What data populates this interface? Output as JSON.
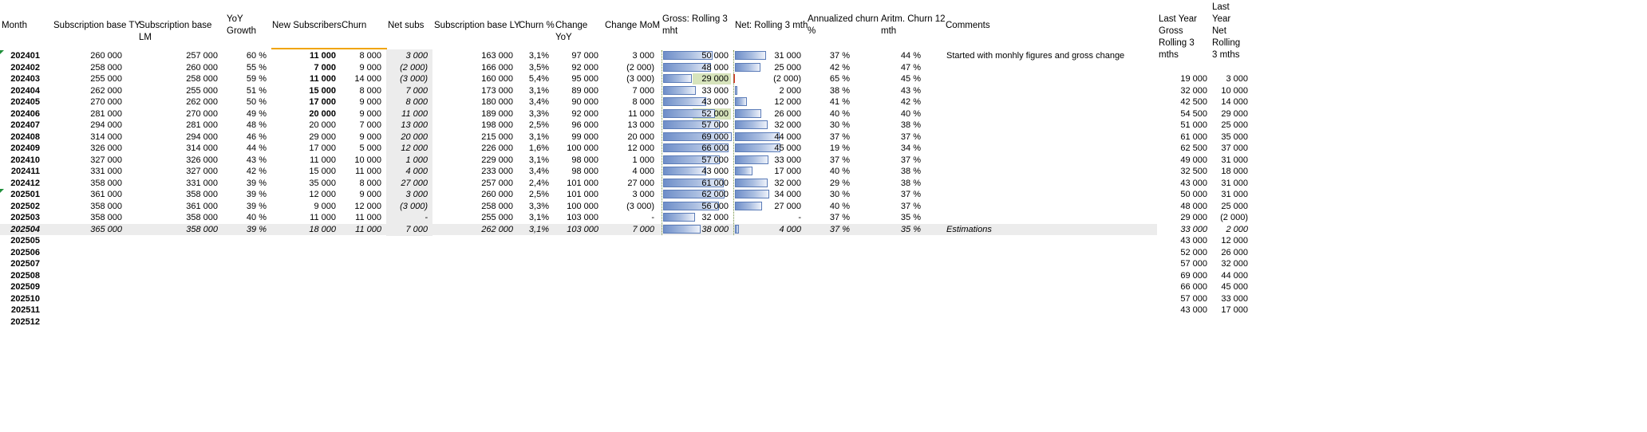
{
  "sheet": {
    "headers": {
      "month": "Month",
      "sub_ty": "Subscription base TY",
      "sub_lm": "Subscription base LM",
      "yoy": "YoY Growth",
      "new_subs": "New Subscribers",
      "churn": "Churn",
      "net_subs": "Net subs",
      "sub_ly": "Subscription base LY",
      "churn_pct": "Churn %",
      "change_yoy": "Change YoY",
      "change_mom": "Change MoM",
      "gross_roll": "Gross: Rolling 3 mht",
      "net_roll": "Net: Rolling 3 mth",
      "ann_churn": "Annualized churn %",
      "arith_churn": "Aritm. Churn 12 mth",
      "comments": "Comments",
      "ly_gross": "Last Year Gross Rolling 3 mths",
      "ly_net": "Last Year Net Rolling 3 mths"
    },
    "rows": [
      {
        "month": "202401",
        "sub_ty": "260 000",
        "sub_lm": "257 000",
        "yoy": "60 %",
        "new_subs": "11 000",
        "churn": "8 000",
        "net_subs": "3 000",
        "sub_ly": "163 000",
        "churn_pct": "3,1%",
        "change_yoy": "97 000",
        "change_mom": "3 000",
        "gross_roll": "50 000",
        "gross_val": 50000,
        "net_roll": "31 000",
        "net_val": 31000,
        "ann_churn": "37 %",
        "arith_churn": "44 %",
        "comment": "Started with monhly figures and gross change",
        "ly_gross": "",
        "ly_net": ""
      },
      {
        "month": "202402",
        "sub_ty": "258 000",
        "sub_lm": "260 000",
        "yoy": "55 %",
        "new_subs": "7 000",
        "churn": "9 000",
        "net_subs": "(2 000)",
        "sub_ly": "166 000",
        "churn_pct": "3,5%",
        "change_yoy": "92 000",
        "change_mom": "(2 000)",
        "gross_roll": "48 000",
        "gross_val": 48000,
        "net_roll": "25 000",
        "net_val": 25000,
        "ann_churn": "42 %",
        "arith_churn": "47 %",
        "comment": "",
        "ly_gross": "",
        "ly_net": ""
      },
      {
        "month": "202403",
        "sub_ty": "255 000",
        "sub_lm": "258 000",
        "yoy": "59 %",
        "new_subs": "11 000",
        "churn": "14 000",
        "net_subs": "(3 000)",
        "sub_ly": "160 000",
        "churn_pct": "5,4%",
        "change_yoy": "95 000",
        "change_mom": "(3 000)",
        "gross_roll": "29 000",
        "gross_val": 29000,
        "net_roll": "(2 000)",
        "net_val": -2000,
        "ann_churn": "65 %",
        "arith_churn": "45 %",
        "comment": "",
        "ly_gross": "19 000",
        "ly_net": "3 000"
      },
      {
        "month": "202404",
        "sub_ty": "262 000",
        "sub_lm": "255 000",
        "yoy": "51 %",
        "new_subs": "15 000",
        "churn": "8 000",
        "net_subs": "7 000",
        "sub_ly": "173 000",
        "churn_pct": "3,1%",
        "change_yoy": "89 000",
        "change_mom": "7 000",
        "gross_roll": "33 000",
        "gross_val": 33000,
        "net_roll": "2 000",
        "net_val": 2000,
        "ann_churn": "38 %",
        "arith_churn": "43 %",
        "comment": "",
        "ly_gross": "32 000",
        "ly_net": "10 000"
      },
      {
        "month": "202405",
        "sub_ty": "270 000",
        "sub_lm": "262 000",
        "yoy": "50 %",
        "new_subs": "17 000",
        "churn": "9 000",
        "net_subs": "8 000",
        "sub_ly": "180 000",
        "churn_pct": "3,4%",
        "change_yoy": "90 000",
        "change_mom": "8 000",
        "gross_roll": "43 000",
        "gross_val": 43000,
        "net_roll": "12 000",
        "net_val": 12000,
        "ann_churn": "41 %",
        "arith_churn": "42 %",
        "comment": "",
        "ly_gross": "42 500",
        "ly_net": "14 000"
      },
      {
        "month": "202406",
        "sub_ty": "281 000",
        "sub_lm": "270 000",
        "yoy": "49 %",
        "new_subs": "20 000",
        "churn": "9 000",
        "net_subs": "11 000",
        "sub_ly": "189 000",
        "churn_pct": "3,3%",
        "change_yoy": "92 000",
        "change_mom": "11 000",
        "gross_roll": "52 000",
        "gross_val": 52000,
        "net_roll": "26 000",
        "net_val": 26000,
        "ann_churn": "40 %",
        "arith_churn": "40 %",
        "comment": "",
        "ly_gross": "54 500",
        "ly_net": "29 000"
      },
      {
        "month": "202407",
        "sub_ty": "294 000",
        "sub_lm": "281 000",
        "yoy": "48 %",
        "new_subs": "20 000",
        "churn": "7 000",
        "net_subs": "13 000",
        "sub_ly": "198 000",
        "churn_pct": "2,5%",
        "change_yoy": "96 000",
        "change_mom": "13 000",
        "gross_roll": "57 000",
        "gross_val": 57000,
        "net_roll": "32 000",
        "net_val": 32000,
        "ann_churn": "30 %",
        "arith_churn": "38 %",
        "comment": "",
        "ly_gross": "51 000",
        "ly_net": "25 000"
      },
      {
        "month": "202408",
        "sub_ty": "314 000",
        "sub_lm": "294 000",
        "yoy": "46 %",
        "new_subs": "29 000",
        "churn": "9 000",
        "net_subs": "20 000",
        "sub_ly": "215 000",
        "churn_pct": "3,1%",
        "change_yoy": "99 000",
        "change_mom": "20 000",
        "gross_roll": "69 000",
        "gross_val": 69000,
        "net_roll": "44 000",
        "net_val": 44000,
        "ann_churn": "37 %",
        "arith_churn": "37 %",
        "comment": "",
        "ly_gross": "61 000",
        "ly_net": "35 000"
      },
      {
        "month": "202409",
        "sub_ty": "326 000",
        "sub_lm": "314 000",
        "yoy": "44 %",
        "new_subs": "17 000",
        "churn": "5 000",
        "net_subs": "12 000",
        "sub_ly": "226 000",
        "churn_pct": "1,6%",
        "change_yoy": "100 000",
        "change_mom": "12 000",
        "gross_roll": "66 000",
        "gross_val": 66000,
        "net_roll": "45 000",
        "net_val": 45000,
        "ann_churn": "19 %",
        "arith_churn": "34 %",
        "comment": "",
        "ly_gross": "62 500",
        "ly_net": "37 000"
      },
      {
        "month": "202410",
        "sub_ty": "327 000",
        "sub_lm": "326 000",
        "yoy": "43 %",
        "new_subs": "11 000",
        "churn": "10 000",
        "net_subs": "1 000",
        "sub_ly": "229 000",
        "churn_pct": "3,1%",
        "change_yoy": "98 000",
        "change_mom": "1 000",
        "gross_roll": "57 000",
        "gross_val": 57000,
        "net_roll": "33 000",
        "net_val": 33000,
        "ann_churn": "37 %",
        "arith_churn": "37 %",
        "comment": "",
        "ly_gross": "49 000",
        "ly_net": "31 000"
      },
      {
        "month": "202411",
        "sub_ty": "331 000",
        "sub_lm": "327 000",
        "yoy": "42 %",
        "new_subs": "15 000",
        "churn": "11 000",
        "net_subs": "4 000",
        "sub_ly": "233 000",
        "churn_pct": "3,4%",
        "change_yoy": "98 000",
        "change_mom": "4 000",
        "gross_roll": "43 000",
        "gross_val": 43000,
        "net_roll": "17 000",
        "net_val": 17000,
        "ann_churn": "40 %",
        "arith_churn": "38 %",
        "comment": "",
        "ly_gross": "32 500",
        "ly_net": "18 000"
      },
      {
        "month": "202412",
        "sub_ty": "358 000",
        "sub_lm": "331 000",
        "yoy": "39 %",
        "new_subs": "35 000",
        "churn": "8 000",
        "net_subs": "27 000",
        "sub_ly": "257 000",
        "churn_pct": "2,4%",
        "change_yoy": "101 000",
        "change_mom": "27 000",
        "gross_roll": "61 000",
        "gross_val": 61000,
        "net_roll": "32 000",
        "net_val": 32000,
        "ann_churn": "29 %",
        "arith_churn": "38 %",
        "comment": "",
        "ly_gross": "43 000",
        "ly_net": "31 000"
      },
      {
        "month": "202501",
        "sub_ty": "361 000",
        "sub_lm": "358 000",
        "yoy": "39 %",
        "new_subs": "12 000",
        "churn": "9 000",
        "net_subs": "3 000",
        "sub_ly": "260 000",
        "churn_pct": "2,5%",
        "change_yoy": "101 000",
        "change_mom": "3 000",
        "gross_roll": "62 000",
        "gross_val": 62000,
        "net_roll": "34 000",
        "net_val": 34000,
        "ann_churn": "30 %",
        "arith_churn": "37 %",
        "comment": "",
        "ly_gross": "50 000",
        "ly_net": "31 000"
      },
      {
        "month": "202502",
        "sub_ty": "358 000",
        "sub_lm": "361 000",
        "yoy": "39 %",
        "new_subs": "9 000",
        "churn": "12 000",
        "net_subs": "(3 000)",
        "sub_ly": "258 000",
        "churn_pct": "3,3%",
        "change_yoy": "100 000",
        "change_mom": "(3 000)",
        "gross_roll": "56 000",
        "gross_val": 56000,
        "net_roll": "27 000",
        "net_val": 27000,
        "ann_churn": "40 %",
        "arith_churn": "37 %",
        "comment": "",
        "ly_gross": "48 000",
        "ly_net": "25 000"
      },
      {
        "month": "202503",
        "sub_ty": "358 000",
        "sub_lm": "358 000",
        "yoy": "40 %",
        "new_subs": "11 000",
        "churn": "11 000",
        "net_subs": "-",
        "sub_ly": "255 000",
        "churn_pct": "3,1%",
        "change_yoy": "103 000",
        "change_mom": "-",
        "gross_roll": "32 000",
        "gross_val": 32000,
        "net_roll": "-",
        "net_val": 0,
        "ann_churn": "37 %",
        "arith_churn": "35 %",
        "comment": "",
        "ly_gross": "29 000",
        "ly_net": "(2 000)"
      },
      {
        "month": "202504",
        "sub_ty": "365 000",
        "sub_lm": "358 000",
        "yoy": "39 %",
        "new_subs": "18 000",
        "churn": "11 000",
        "net_subs": "7 000",
        "sub_ly": "262 000",
        "churn_pct": "3,1%",
        "change_yoy": "103 000",
        "change_mom": "7 000",
        "gross_roll": "38 000",
        "gross_val": 38000,
        "net_roll": "4 000",
        "net_val": 4000,
        "ann_churn": "37 %",
        "arith_churn": "35 %",
        "comment": "Estimations",
        "ly_gross": "33 000",
        "ly_net": "2 000"
      },
      {
        "month": "202505",
        "ly_gross": "43 000",
        "ly_net": "12 000"
      },
      {
        "month": "202506",
        "ly_gross": "52 000",
        "ly_net": "26 000"
      },
      {
        "month": "202507",
        "ly_gross": "57 000",
        "ly_net": "32 000"
      },
      {
        "month": "202508",
        "ly_gross": "69 000",
        "ly_net": "44 000"
      },
      {
        "month": "202509",
        "ly_gross": "66 000",
        "ly_net": "45 000"
      },
      {
        "month": "202510",
        "ly_gross": "57 000",
        "ly_net": "33 000"
      },
      {
        "month": "202511",
        "ly_gross": "43 000",
        "ly_net": "17 000"
      },
      {
        "month": "202512"
      }
    ]
  },
  "colors": {
    "bar_fill": "#8fa8d8",
    "bar_border": "#5b7cb8",
    "highlight_green": "#d7e4bc",
    "header_underline_orange": "#f0a400",
    "row_shade": "#ececec"
  }
}
